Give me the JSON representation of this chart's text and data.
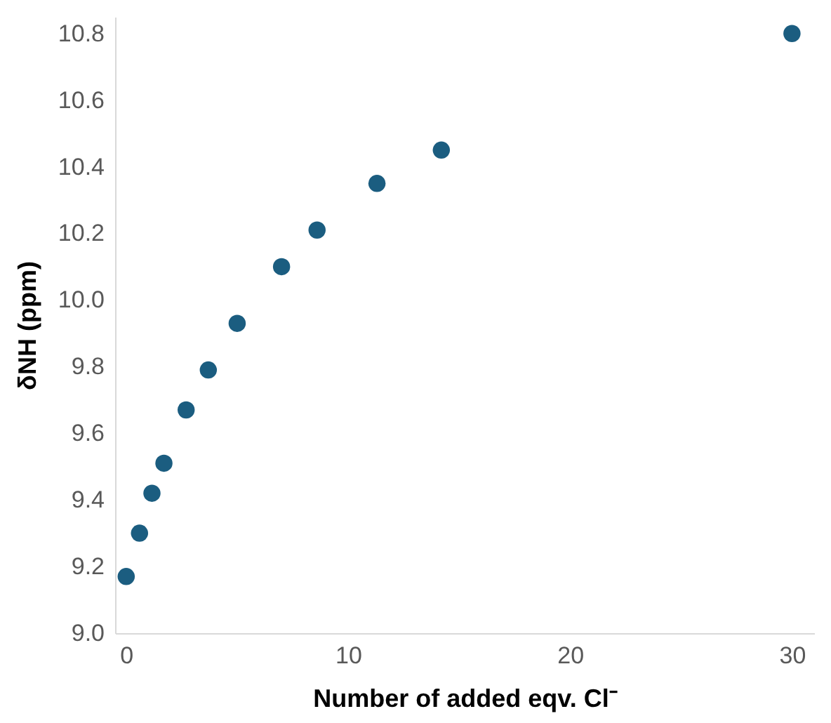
{
  "chart_data": {
    "type": "scatter",
    "xlabel": "Number of added eqv. Cl⁻",
    "ylabel": "δNH (ppm)",
    "x": [
      0,
      0.6,
      1.16,
      1.7,
      2.7,
      3.7,
      5.0,
      7.0,
      8.6,
      11.3,
      14.2,
      30
    ],
    "series": [
      {
        "color": "#1b5d80",
        "values": [
          9.17,
          9.3,
          9.42,
          9.51,
          9.67,
          9.79,
          9.93,
          10.1,
          10.21,
          10.35,
          10.45,
          10.8
        ]
      }
    ],
    "xlim": [
      -0.5,
      31
    ],
    "xticks": [
      0,
      10,
      20,
      30
    ],
    "ylim": [
      9.0,
      10.85
    ],
    "yticks": [
      {
        "value": 9.0,
        "label": "9.0"
      },
      9.2,
      9.4,
      9.6,
      9.8,
      {
        "value": 10.0,
        "label": "10.0"
      },
      10.2,
      10.4,
      10.6,
      10.8
    ],
    "grid": false,
    "legend": false,
    "marker": "circle"
  }
}
